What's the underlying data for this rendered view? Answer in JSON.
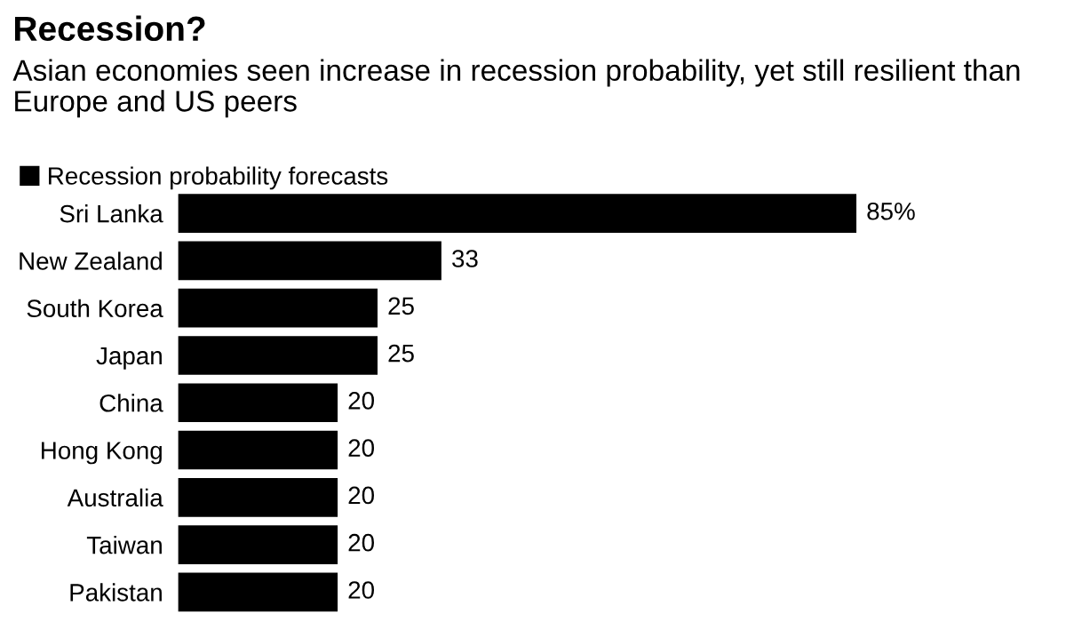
{
  "chart_data": {
    "type": "bar",
    "orientation": "horizontal",
    "title": "Recession?",
    "subtitle": "Asian economies seen increase in recession probability, yet still resilient than Europe and US peers",
    "categories": [
      "Sri Lanka",
      "New Zealand",
      "South Korea",
      "Japan",
      "China",
      "Hong Kong",
      "Australia",
      "Taiwan",
      "Pakistan"
    ],
    "series": [
      {
        "name": "Recession probability forecasts",
        "color": "#000000",
        "values": [
          85,
          33,
          25,
          25,
          20,
          20,
          20,
          20,
          20
        ],
        "value_labels": [
          "85%",
          "33",
          "25",
          "25",
          "20",
          "20",
          "20",
          "20",
          "20"
        ]
      }
    ],
    "legend": "top left",
    "grid": false
  }
}
